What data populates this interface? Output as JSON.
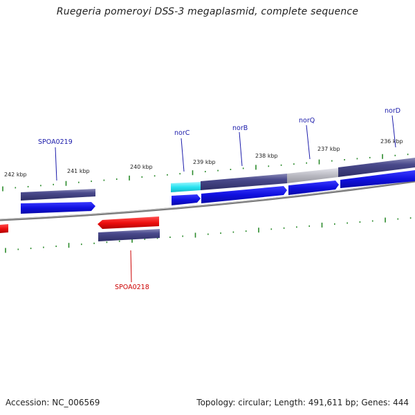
{
  "title": "Ruegeria pomeroyi DSS-3 megaplasmid, complete sequence",
  "footer": {
    "accession": "Accession: NC_006569",
    "summary": "Topology: circular; Length: 491,611 bp; Genes: 444"
  },
  "colors": {
    "forward_label": "#1a1aaa",
    "reverse_label": "#cc0000",
    "cds_blue": "#1010e0",
    "gene_purple": "#4a4a8c",
    "gene_cyan": "#29e3f0",
    "gene_grey": "#b8b8c0",
    "cds_red": "#ee1010",
    "tick_green": "#2a8a2a",
    "backbone": "#7a7a7a"
  },
  "ticks": [
    {
      "label": "242 kbp"
    },
    {
      "label": "241 kbp"
    },
    {
      "label": "240 kbp"
    },
    {
      "label": "239 kbp"
    },
    {
      "label": "238 kbp"
    },
    {
      "label": "237 kbp"
    },
    {
      "label": "236 kbp"
    }
  ],
  "genes": [
    {
      "name": "SPOA0219",
      "strand": "+"
    },
    {
      "name": "norC",
      "strand": "+"
    },
    {
      "name": "norB",
      "strand": "+"
    },
    {
      "name": "norQ",
      "strand": "+"
    },
    {
      "name": "norD",
      "strand": "+"
    },
    {
      "name": "SPOA0218",
      "strand": "-"
    }
  ]
}
